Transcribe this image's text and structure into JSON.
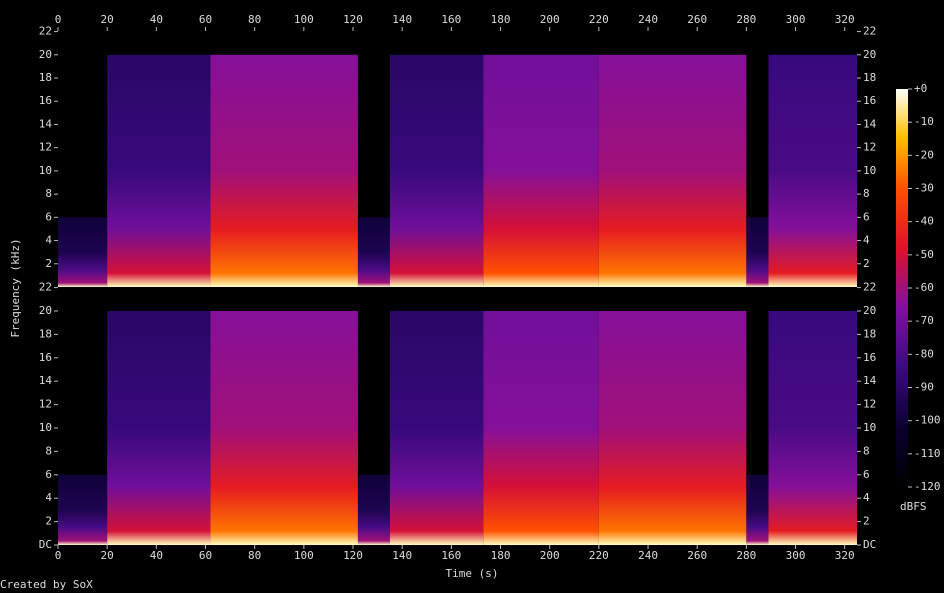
{
  "chart_data": {
    "type": "spectrogram",
    "xlabel": "Time (s)",
    "ylabel": "Frequency (kHz)",
    "footer": "Created by SoX",
    "xlim": [
      0,
      325
    ],
    "xticks": [
      0,
      20,
      40,
      60,
      80,
      100,
      120,
      140,
      160,
      180,
      200,
      220,
      240,
      260,
      280,
      300,
      320
    ],
    "ylim": [
      0,
      22.05
    ],
    "clim": [
      -120,
      0
    ],
    "colorbar_label": "dBFS",
    "cticks": [
      {
        "value": 0,
        "label": "+0"
      },
      -10,
      -20,
      -30,
      -40,
      -50,
      -60,
      -70,
      -80,
      -90,
      -100,
      -110,
      -120
    ],
    "channels": [
      {
        "yticks": [
          2,
          4,
          6,
          8,
          10,
          12,
          14,
          16,
          18,
          20,
          22
        ],
        "segments": [
          {
            "start": 0,
            "end": 20,
            "top": 6,
            "level": -95
          },
          {
            "start": 20,
            "end": 62,
            "top": 20,
            "level": -85
          },
          {
            "start": 62,
            "end": 122,
            "top": 20,
            "level": -60
          },
          {
            "start": 122,
            "end": 135,
            "top": 6,
            "level": -95
          },
          {
            "start": 135,
            "end": 173,
            "top": 20,
            "level": -85
          },
          {
            "start": 173,
            "end": 220,
            "top": 20,
            "level": -65
          },
          {
            "start": 220,
            "end": 280,
            "top": 20,
            "level": -60
          },
          {
            "start": 280,
            "end": 289,
            "top": 6,
            "level": -95
          },
          {
            "start": 289,
            "end": 325,
            "top": 20,
            "level": -80
          }
        ]
      },
      {
        "yticks": [
          {
            "value": 0,
            "label": "DC"
          },
          2,
          4,
          6,
          8,
          10,
          12,
          14,
          16,
          18,
          20,
          22
        ],
        "segments": [
          {
            "start": 0,
            "end": 20,
            "top": 6,
            "level": -95
          },
          {
            "start": 20,
            "end": 62,
            "top": 20,
            "level": -85
          },
          {
            "start": 62,
            "end": 122,
            "top": 20,
            "level": -60
          },
          {
            "start": 122,
            "end": 135,
            "top": 6,
            "level": -95
          },
          {
            "start": 135,
            "end": 173,
            "top": 20,
            "level": -85
          },
          {
            "start": 173,
            "end": 220,
            "top": 20,
            "level": -65
          },
          {
            "start": 220,
            "end": 280,
            "top": 20,
            "level": -60
          },
          {
            "start": 280,
            "end": 289,
            "top": 6,
            "level": -95
          },
          {
            "start": 289,
            "end": 325,
            "top": 20,
            "level": -80
          }
        ]
      }
    ]
  }
}
